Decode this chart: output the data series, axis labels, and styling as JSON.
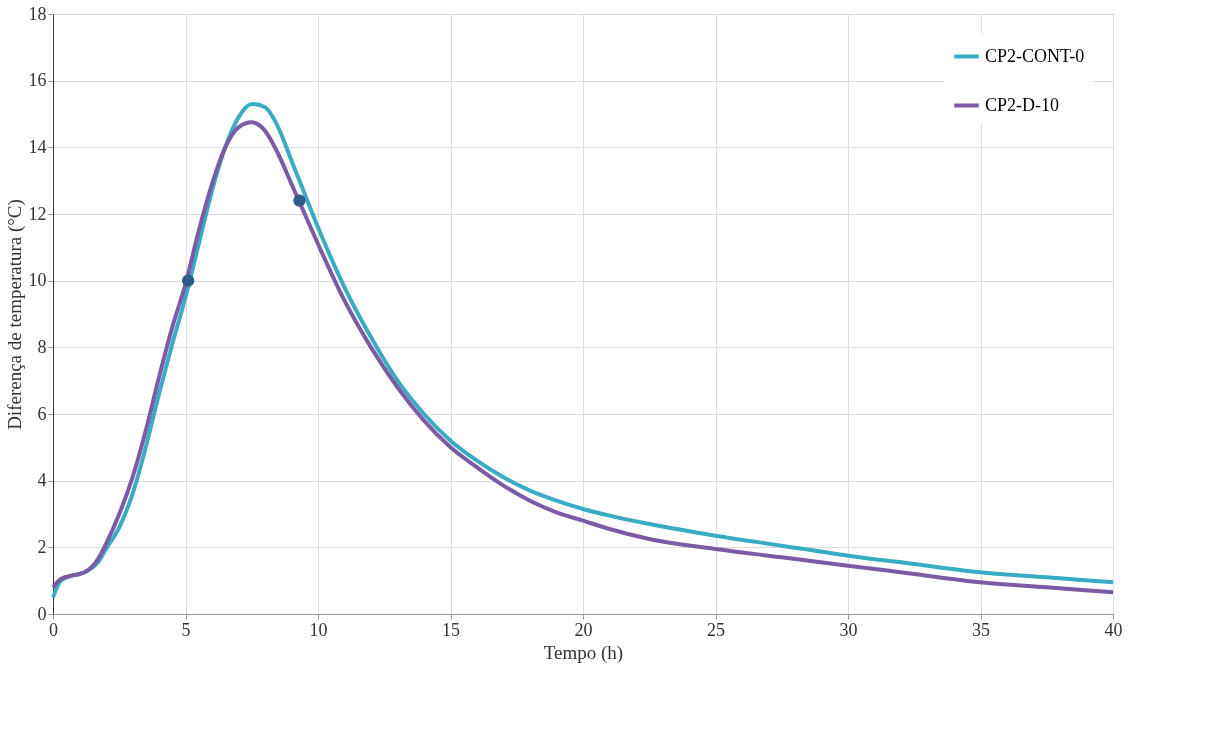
{
  "chart_data": {
    "type": "line",
    "xlabel": "Tempo (h)",
    "ylabel": "Diferença  de temperatura  (°C)",
    "xlim": [
      0,
      40
    ],
    "xticks": [
      0,
      5,
      10,
      15,
      20,
      25,
      30,
      35,
      40
    ],
    "ylim": [
      0,
      18
    ],
    "yticks": [
      0,
      2,
      4,
      6,
      8,
      10,
      12,
      14,
      16,
      18
    ],
    "grid": true,
    "legend": "top right",
    "line_style": "solid",
    "series": [
      {
        "name": "CP2-CONT-0",
        "color": "#3aabc4",
        "x": [
          0,
          0.3,
          0.7,
          1,
          1.3,
          1.7,
          2,
          2.5,
          3,
          3.5,
          4,
          4.5,
          5,
          5.5,
          6,
          6.5,
          7,
          7.5,
          8,
          8.5,
          9,
          9.5,
          10,
          11,
          12,
          13,
          14,
          15,
          16,
          17,
          18,
          19,
          20,
          21,
          22.5,
          25,
          27.5,
          30,
          32.5,
          35,
          37.5,
          40
        ],
        "values": [
          0.5,
          1.0,
          1.15,
          1.2,
          1.3,
          1.55,
          1.95,
          2.6,
          3.6,
          5.0,
          6.6,
          8.1,
          9.5,
          11.1,
          12.7,
          14.0,
          14.9,
          15.3,
          15.2,
          14.6,
          13.6,
          12.6,
          11.6,
          9.8,
          8.3,
          7.0,
          6.0,
          5.2,
          4.6,
          4.1,
          3.7,
          3.4,
          3.15,
          2.95,
          2.7,
          2.35,
          2.05,
          1.75,
          1.5,
          1.25,
          1.1,
          0.95
        ]
      },
      {
        "name": "CP2-D-10",
        "color": "#7b5aa6",
        "x": [
          0,
          0.3,
          0.7,
          1,
          1.3,
          1.7,
          2,
          2.5,
          3,
          3.5,
          4,
          4.5,
          5,
          5.5,
          6,
          6.5,
          7,
          7.5,
          8,
          8.5,
          9,
          9.5,
          10,
          11,
          12,
          13,
          14,
          15,
          16,
          17,
          18,
          19,
          20,
          21,
          22.5,
          25,
          27.5,
          30,
          32.5,
          35,
          37.5,
          40
        ],
        "values": [
          0.8,
          1.05,
          1.15,
          1.2,
          1.3,
          1.65,
          2.1,
          3.0,
          4.1,
          5.5,
          7.1,
          8.6,
          9.9,
          11.5,
          12.9,
          14.0,
          14.6,
          14.75,
          14.5,
          13.8,
          12.9,
          12.0,
          11.1,
          9.4,
          8.0,
          6.8,
          5.8,
          5.0,
          4.4,
          3.85,
          3.4,
          3.05,
          2.8,
          2.55,
          2.25,
          1.95,
          1.7,
          1.45,
          1.2,
          0.95,
          0.8,
          0.65
        ]
      },
      {
        "color": "#2e5a8c",
        "type": "scatter",
        "marker": "circle",
        "x": [
          5.1,
          9.3
        ],
        "values": [
          10,
          12.4
        ]
      }
    ]
  }
}
